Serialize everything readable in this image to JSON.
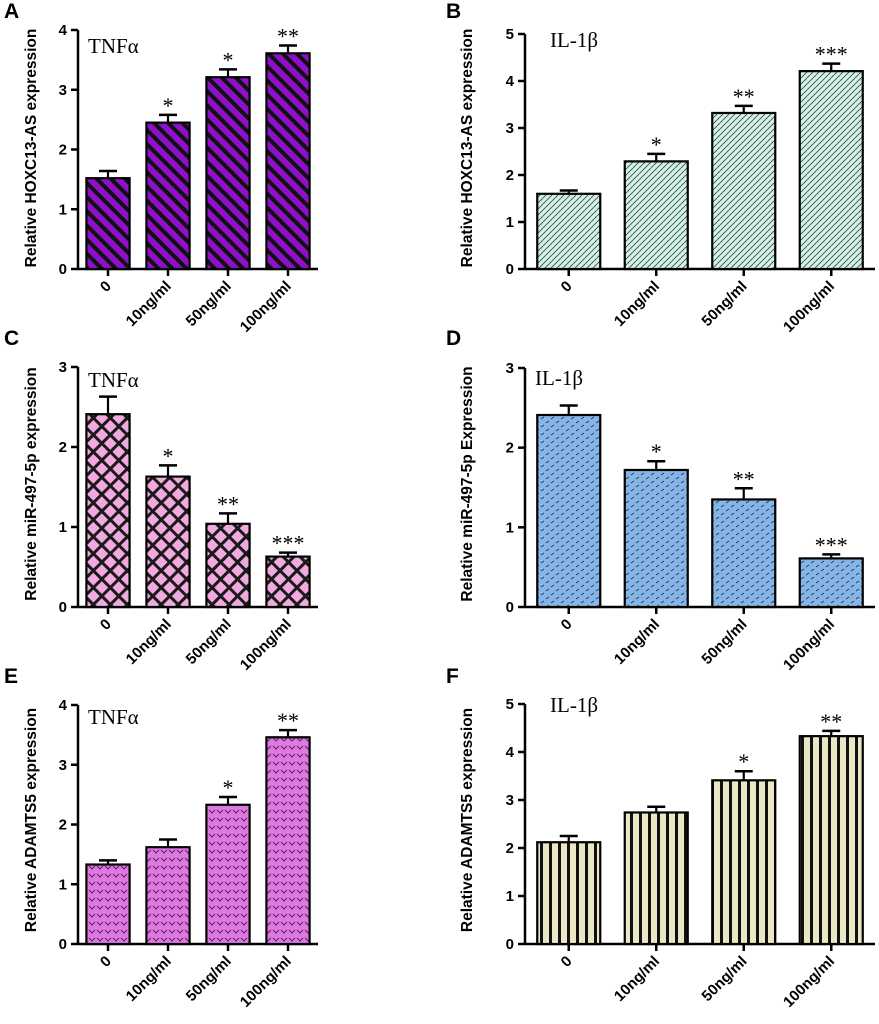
{
  "colors": {
    "purple": "#8f10c9",
    "mint": "#d8efe8",
    "pink": "#f2a9e0",
    "blue": "#86b5e6",
    "violet": "#dd79e0",
    "cream": "#ebe6c4"
  },
  "chart_data": [
    {
      "panel": "A",
      "type": "bar",
      "title": "TNFα",
      "xlabel": "",
      "ylabel": "Relative HOXC13-AS expression",
      "categories": [
        "0",
        "10ng/ml",
        "50ng/ml",
        "100ng/ml"
      ],
      "values": [
        1.52,
        2.45,
        3.21,
        3.61
      ],
      "errors": [
        0.12,
        0.13,
        0.13,
        0.13
      ],
      "significance": [
        "",
        "*",
        "*",
        "**"
      ],
      "ylim": [
        0,
        4
      ],
      "yticks": [
        "0",
        "1",
        "2",
        "3",
        "4"
      ],
      "pattern": "diagonal-stripes",
      "color": "#8f10c9"
    },
    {
      "panel": "B",
      "type": "bar",
      "title": "IL-1β",
      "xlabel": "",
      "ylabel": "Relative HOXC13-AS expression",
      "categories": [
        "0",
        "10ng/ml",
        "50ng/ml",
        "100ng/ml"
      ],
      "values": [
        1.6,
        2.29,
        3.32,
        4.21
      ],
      "errors": [
        0.07,
        0.16,
        0.15,
        0.16
      ],
      "significance": [
        "",
        "*",
        "**",
        "***"
      ],
      "ylim": [
        0,
        5
      ],
      "yticks": [
        "0",
        "1",
        "2",
        "3",
        "4",
        "5"
      ],
      "pattern": "fine-dots",
      "color": "#d8efe8"
    },
    {
      "panel": "C",
      "type": "bar",
      "title": "TNFα",
      "xlabel": "",
      "ylabel": "Relative miR-497-5p expression",
      "categories": [
        "0",
        "10ng/ml",
        "50ng/ml",
        "100ng/ml"
      ],
      "values": [
        2.41,
        1.63,
        1.04,
        0.63
      ],
      "errors": [
        0.22,
        0.14,
        0.13,
        0.05
      ],
      "significance": [
        "",
        "*",
        "**",
        "***"
      ],
      "ylim": [
        0,
        3
      ],
      "yticks": [
        "0",
        "1",
        "2",
        "3"
      ],
      "pattern": "crosshatch",
      "color": "#f2a9e0"
    },
    {
      "panel": "D",
      "type": "bar",
      "title": "IL-1β",
      "xlabel": "",
      "ylabel": "Relative miR-497-5p Expression",
      "categories": [
        "0",
        "10ng/ml",
        "50ng/ml",
        "100ng/ml"
      ],
      "values": [
        2.41,
        1.72,
        1.35,
        0.61
      ],
      "errors": [
        0.12,
        0.11,
        0.14,
        0.05
      ],
      "significance": [
        "",
        "*",
        "**",
        "***"
      ],
      "ylim": [
        0,
        3
      ],
      "yticks": [
        "0",
        "1",
        "2",
        "3"
      ],
      "pattern": "brick-dashes",
      "color": "#86b5e6"
    },
    {
      "panel": "E",
      "type": "bar",
      "title": "TNFα",
      "xlabel": "",
      "ylabel": "Relative ADAMTS5 expression",
      "categories": [
        "0",
        "10ng/ml",
        "50ng/ml",
        "100ng/ml"
      ],
      "values": [
        1.33,
        1.62,
        2.33,
        3.46
      ],
      "errors": [
        0.07,
        0.13,
        0.13,
        0.12
      ],
      "significance": [
        "",
        "",
        "*",
        "**"
      ],
      "ylim": [
        0,
        4
      ],
      "yticks": [
        "0",
        "1",
        "2",
        "3",
        "4"
      ],
      "pattern": "chevrons",
      "color": "#dd79e0"
    },
    {
      "panel": "F",
      "type": "bar",
      "title": "IL-1β",
      "xlabel": "",
      "ylabel": "Relative ADAMTS5 expression",
      "categories": [
        "0",
        "10ng/ml",
        "50ng/ml",
        "100ng/ml"
      ],
      "values": [
        2.12,
        2.74,
        3.41,
        4.33
      ],
      "errors": [
        0.13,
        0.12,
        0.19,
        0.11
      ],
      "significance": [
        "",
        "",
        "*",
        "**"
      ],
      "ylim": [
        0,
        5
      ],
      "yticks": [
        "0",
        "1",
        "2",
        "3",
        "4",
        "5"
      ],
      "pattern": "vertical-stripes",
      "color": "#ebe6c4"
    }
  ]
}
